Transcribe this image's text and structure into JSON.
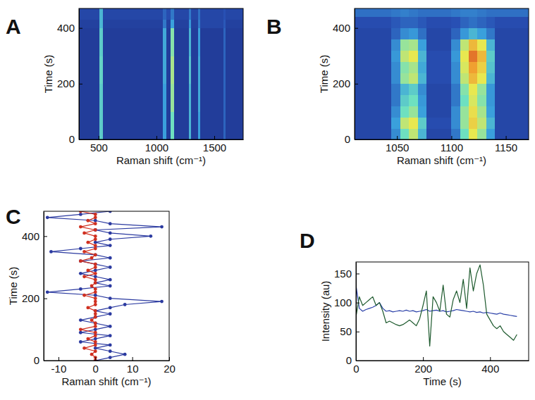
{
  "chart_data": [
    {
      "type": "heatmap",
      "panel": "A",
      "x_label": "Raman shift (cm⁻¹)",
      "y_label": "Time (s)",
      "xlim": [
        330,
        1750
      ],
      "ylim": [
        0,
        470
      ],
      "xticks": [
        500,
        1000,
        1500
      ],
      "yticks": [
        0,
        200,
        400
      ],
      "x_edges": [
        330,
        505,
        535,
        1055,
        1085,
        1120,
        1150,
        1280,
        1300,
        1360,
        1380,
        1580,
        1600,
        1750
      ],
      "y_edges": [
        0,
        100,
        200,
        300,
        400,
        430,
        470
      ],
      "zlim": [
        0,
        100
      ],
      "cells": [
        [
          10,
          50,
          10,
          40,
          10,
          55,
          10,
          45,
          10,
          40,
          10,
          25,
          10
        ],
        [
          10,
          50,
          10,
          40,
          10,
          60,
          10,
          45,
          10,
          42,
          10,
          25,
          10
        ],
        [
          10,
          52,
          10,
          42,
          10,
          62,
          10,
          48,
          10,
          42,
          10,
          25,
          10
        ],
        [
          10,
          50,
          10,
          42,
          10,
          58,
          10,
          45,
          10,
          40,
          10,
          25,
          10
        ],
        [
          12,
          45,
          12,
          30,
          12,
          40,
          12,
          38,
          12,
          30,
          15,
          22,
          12
        ],
        [
          15,
          45,
          15,
          25,
          18,
          30,
          15,
          30,
          15,
          28,
          15,
          20,
          15
        ]
      ]
    },
    {
      "type": "heatmap",
      "panel": "B",
      "x_label": "Raman shift (cm⁻¹)",
      "y_label": "Time (s)",
      "xlim": [
        1011,
        1171
      ],
      "ylim": [
        0,
        470
      ],
      "xticks": [
        1050,
        1100,
        1150
      ],
      "yticks": [
        0,
        200,
        400
      ],
      "x_edges": [
        1011,
        1045,
        1053,
        1061,
        1069,
        1077,
        1100,
        1108,
        1116,
        1124,
        1132,
        1140,
        1171
      ],
      "y_edges": [
        0,
        40,
        80,
        120,
        160,
        200,
        240,
        280,
        320,
        360,
        400,
        440,
        470
      ],
      "zlim": [
        0,
        100
      ],
      "cells": [
        [
          15,
          35,
          55,
          65,
          45,
          15,
          30,
          55,
          70,
          60,
          40,
          15
        ],
        [
          15,
          40,
          65,
          70,
          50,
          18,
          35,
          60,
          75,
          65,
          45,
          15
        ],
        [
          15,
          35,
          55,
          60,
          40,
          15,
          35,
          60,
          72,
          62,
          40,
          15
        ],
        [
          15,
          30,
          50,
          55,
          38,
          15,
          30,
          55,
          68,
          58,
          38,
          15
        ],
        [
          15,
          30,
          45,
          50,
          35,
          15,
          30,
          58,
          70,
          60,
          38,
          15
        ],
        [
          15,
          35,
          60,
          65,
          45,
          18,
          35,
          65,
          80,
          70,
          45,
          15
        ],
        [
          15,
          35,
          58,
          62,
          42,
          18,
          35,
          68,
          85,
          75,
          48,
          15
        ],
        [
          15,
          38,
          65,
          70,
          45,
          18,
          38,
          70,
          90,
          80,
          50,
          15
        ],
        [
          15,
          35,
          60,
          62,
          40,
          15,
          35,
          65,
          80,
          70,
          45,
          15
        ],
        [
          15,
          25,
          35,
          38,
          28,
          15,
          25,
          38,
          45,
          40,
          30,
          15
        ],
        [
          18,
          22,
          25,
          25,
          22,
          18,
          20,
          25,
          28,
          25,
          22,
          18
        ],
        [
          28,
          30,
          32,
          30,
          28,
          28,
          30,
          32,
          32,
          30,
          28,
          28
        ]
      ]
    },
    {
      "type": "line",
      "panel": "C",
      "x_label": "Raman shift (cm⁻¹)",
      "y_label": "Time (s)",
      "xlim": [
        -14,
        20
      ],
      "ylim": [
        0,
        480
      ],
      "xticks": [
        -10,
        0,
        10,
        20
      ],
      "yticks": [
        0,
        200,
        400
      ],
      "series": [
        {
          "color": "#2b3aa0",
          "marker": "circle",
          "line_style": "solid",
          "x": [
            0,
            4,
            8,
            4,
            0,
            4,
            -4,
            0,
            4,
            -4,
            0,
            4,
            0,
            -4,
            0,
            4,
            0,
            4,
            8,
            18,
            4,
            0,
            -13,
            -4,
            4,
            0,
            4,
            0,
            -4,
            0,
            4,
            0,
            -4,
            4,
            0,
            -12,
            -4,
            4,
            0,
            4,
            15,
            4,
            0,
            18,
            4,
            0,
            -13,
            -4,
            4
          ],
          "y": [
            0,
            10,
            20,
            30,
            40,
            50,
            60,
            70,
            80,
            90,
            100,
            110,
            120,
            130,
            140,
            150,
            160,
            170,
            180,
            190,
            200,
            210,
            220,
            230,
            240,
            250,
            260,
            270,
            280,
            290,
            300,
            310,
            320,
            330,
            340,
            350,
            360,
            370,
            380,
            390,
            400,
            410,
            420,
            430,
            440,
            450,
            460,
            470,
            480
          ]
        },
        {
          "color": "#d03020",
          "marker": "circle",
          "line_style": "solid",
          "x": [
            0,
            0,
            -1,
            0,
            -3,
            0,
            0,
            -2,
            0,
            0,
            -4,
            0,
            0,
            -1,
            0,
            0,
            0,
            -2,
            0,
            0,
            0,
            -3,
            0,
            0,
            -1,
            0,
            0,
            -3,
            0,
            -2,
            0,
            0,
            -4,
            -1,
            0,
            -3,
            0,
            0,
            -2,
            0,
            0,
            -3,
            0,
            -4,
            0,
            -2,
            0,
            0,
            -4
          ],
          "y": [
            0,
            10,
            20,
            30,
            40,
            50,
            60,
            70,
            80,
            90,
            100,
            110,
            120,
            130,
            140,
            150,
            160,
            170,
            180,
            190,
            200,
            210,
            220,
            230,
            240,
            250,
            260,
            270,
            280,
            290,
            300,
            310,
            320,
            330,
            340,
            350,
            360,
            370,
            380,
            390,
            400,
            410,
            420,
            430,
            440,
            450,
            460,
            470,
            480
          ]
        }
      ]
    },
    {
      "type": "line",
      "panel": "D",
      "x_label": "Time (s)",
      "y_label": "Intensity (au)",
      "xlim": [
        0,
        515
      ],
      "ylim": [
        0,
        170
      ],
      "xticks": [
        0,
        200,
        400
      ],
      "yticks": [
        0,
        50,
        100,
        150
      ],
      "x": [
        0,
        10,
        20,
        30,
        40,
        50,
        60,
        70,
        80,
        90,
        100,
        110,
        120,
        130,
        140,
        150,
        160,
        170,
        180,
        190,
        200,
        210,
        220,
        230,
        240,
        250,
        260,
        270,
        280,
        290,
        300,
        310,
        320,
        330,
        340,
        350,
        360,
        370,
        380,
        390,
        400,
        410,
        420,
        430,
        440,
        450,
        460,
        470,
        480
      ],
      "series": [
        {
          "color": "#2a40a8",
          "line_style": "solid",
          "values": [
            130,
            90,
            85,
            88,
            90,
            92,
            95,
            100,
            90,
            85,
            86,
            84,
            85,
            86,
            85,
            87,
            85,
            86,
            84,
            85,
            86,
            88,
            85,
            86,
            87,
            85,
            86,
            84,
            85,
            86,
            88,
            87,
            86,
            85,
            84,
            85,
            83,
            84,
            82,
            83,
            82,
            81,
            80,
            82,
            80,
            79,
            78,
            77,
            76
          ]
        },
        {
          "color": "#1e5a2e",
          "line_style": "solid",
          "values": [
            75,
            110,
            95,
            100,
            105,
            110,
            95,
            100,
            85,
            65,
            68,
            65,
            62,
            60,
            62,
            66,
            70,
            65,
            60,
            72,
            95,
            120,
            25,
            110,
            100,
            85,
            130,
            80,
            75,
            105,
            120,
            100,
            140,
            90,
            160,
            120,
            150,
            165,
            130,
            80,
            70,
            60,
            55,
            60,
            50,
            45,
            40,
            35,
            45
          ]
        }
      ]
    }
  ]
}
